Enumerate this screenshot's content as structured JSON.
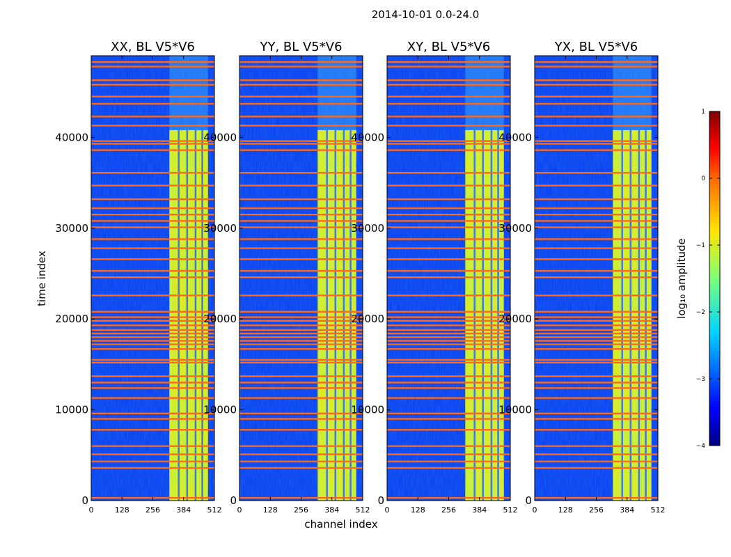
{
  "chart_data": {
    "type": "heatmap",
    "suptitle": "2014-10-01 0.0-24.0",
    "xlabel": "channel index",
    "ylabel": "time index",
    "xlim": [
      0,
      512
    ],
    "ylim": [
      0,
      49000
    ],
    "x_ticks": [
      0,
      128,
      256,
      384,
      512
    ],
    "x_tick_labels": [
      "0",
      "128",
      "256",
      "384",
      "512"
    ],
    "y_ticks": [
      0,
      10000,
      20000,
      30000,
      40000
    ],
    "y_tick_labels": [
      "0",
      "10000",
      "20000",
      "30000",
      "40000"
    ],
    "colorbar": {
      "label": "log₁₀ amplitude",
      "range": [
        -4,
        1
      ],
      "ticks": [
        1,
        0,
        -1,
        -2,
        -3,
        -4
      ],
      "tick_labels": [
        "1",
        "0",
        "−1",
        "−2",
        "−3",
        "−4"
      ],
      "colormap": "jet"
    },
    "panels": [
      {
        "title": "XX, BL V5*V6",
        "bright_band_channels": [
          325,
          485
        ],
        "bright_band_time": [
          0,
          40800
        ]
      },
      {
        "title": "YY, BL V5*V6",
        "bright_band_channels": [
          325,
          485
        ],
        "bright_band_time": [
          0,
          40800
        ]
      },
      {
        "title": "XY, BL V5*V6",
        "bright_band_channels": [
          325,
          485
        ],
        "bright_band_time": [
          0,
          40800
        ]
      },
      {
        "title": "YX, BL V5*V6",
        "bright_band_channels": [
          325,
          485
        ],
        "bright_band_time": [
          0,
          40800
        ]
      }
    ],
    "flagged_time_rows": [
      300,
      3600,
      4300,
      5100,
      6000,
      7800,
      9000,
      9600,
      11300,
      12400,
      13000,
      13700,
      15200,
      15500,
      16700,
      17200,
      17600,
      18000,
      18400,
      18800,
      19300,
      19800,
      20200,
      20800,
      22600,
      24600,
      25300,
      26600,
      27800,
      28800,
      30100,
      30800,
      31500,
      32200,
      33200,
      34700,
      36100,
      38600,
      39300,
      39600,
      41300,
      42300,
      43700,
      44500,
      45800,
      46300,
      47800,
      48300
    ]
  },
  "colors": {
    "flag_line": "#ff6a1a",
    "background_low": "#0a3cf0",
    "band_mid": "#c8f03a"
  }
}
